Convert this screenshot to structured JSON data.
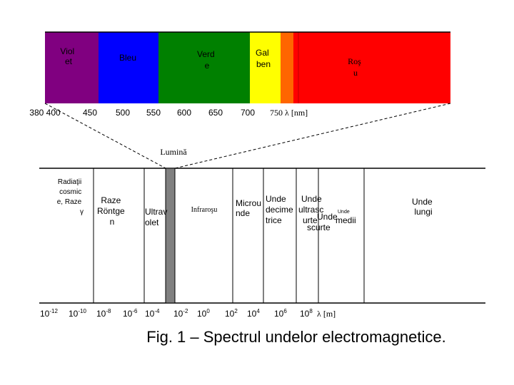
{
  "spectrum": {
    "bands": [
      {
        "label": [
          "Viol",
          "et"
        ]
      },
      {
        "label": [
          "Bleu"
        ]
      },
      {
        "label": [
          "Verd",
          "e"
        ]
      },
      {
        "label": [
          "Gal",
          "ben"
        ]
      },
      {
        "label": [
          "Roş",
          "u"
        ]
      }
    ],
    "wavelength_ticks": [
      "380 400",
      "450",
      "500",
      "550",
      "600",
      "650",
      "700",
      "750 λ [nm]"
    ]
  },
  "visible_label": "Lumină",
  "regions": [
    {
      "label": [
        "Radiaţii",
        "cosmic",
        "e,  Raze",
        "γ"
      ]
    },
    {
      "label": [
        "Raze",
        "Röntge",
        "n"
      ]
    },
    {
      "label": [
        "Ultrav",
        "olet"
      ]
    },
    {
      "label": [
        "Infraroşu"
      ]
    },
    {
      "label": [
        "Microu",
        "nde"
      ]
    },
    {
      "label": [
        "Unde",
        "decime",
        "trice"
      ]
    },
    {
      "label": [
        "Unde",
        "ultrasc",
        "urte"
      ]
    },
    {
      "label": [
        "Unde",
        "scurte"
      ]
    },
    {
      "label": [
        "Unde",
        "medii"
      ]
    },
    {
      "label": [
        "Unde",
        "lungi"
      ]
    }
  ],
  "scale_ticks": [
    {
      "base": "10",
      "exp": "-12"
    },
    {
      "base": "10",
      "exp": "-10"
    },
    {
      "base": "10",
      "exp": "-8"
    },
    {
      "base": "10",
      "exp": "-6"
    },
    {
      "base": "10",
      "exp": "-4"
    },
    {
      "base": "10",
      "exp": "-2"
    },
    {
      "base": "10",
      "exp": "0"
    },
    {
      "base": "10",
      "exp": "2"
    },
    {
      "base": "10",
      "exp": "4"
    },
    {
      "base": "10",
      "exp": "6"
    },
    {
      "base": "10",
      "exp": "8"
    }
  ],
  "scale_unit": "λ [m]",
  "caption": "Fig. 1 – Spectrul undelor electromagnetice."
}
